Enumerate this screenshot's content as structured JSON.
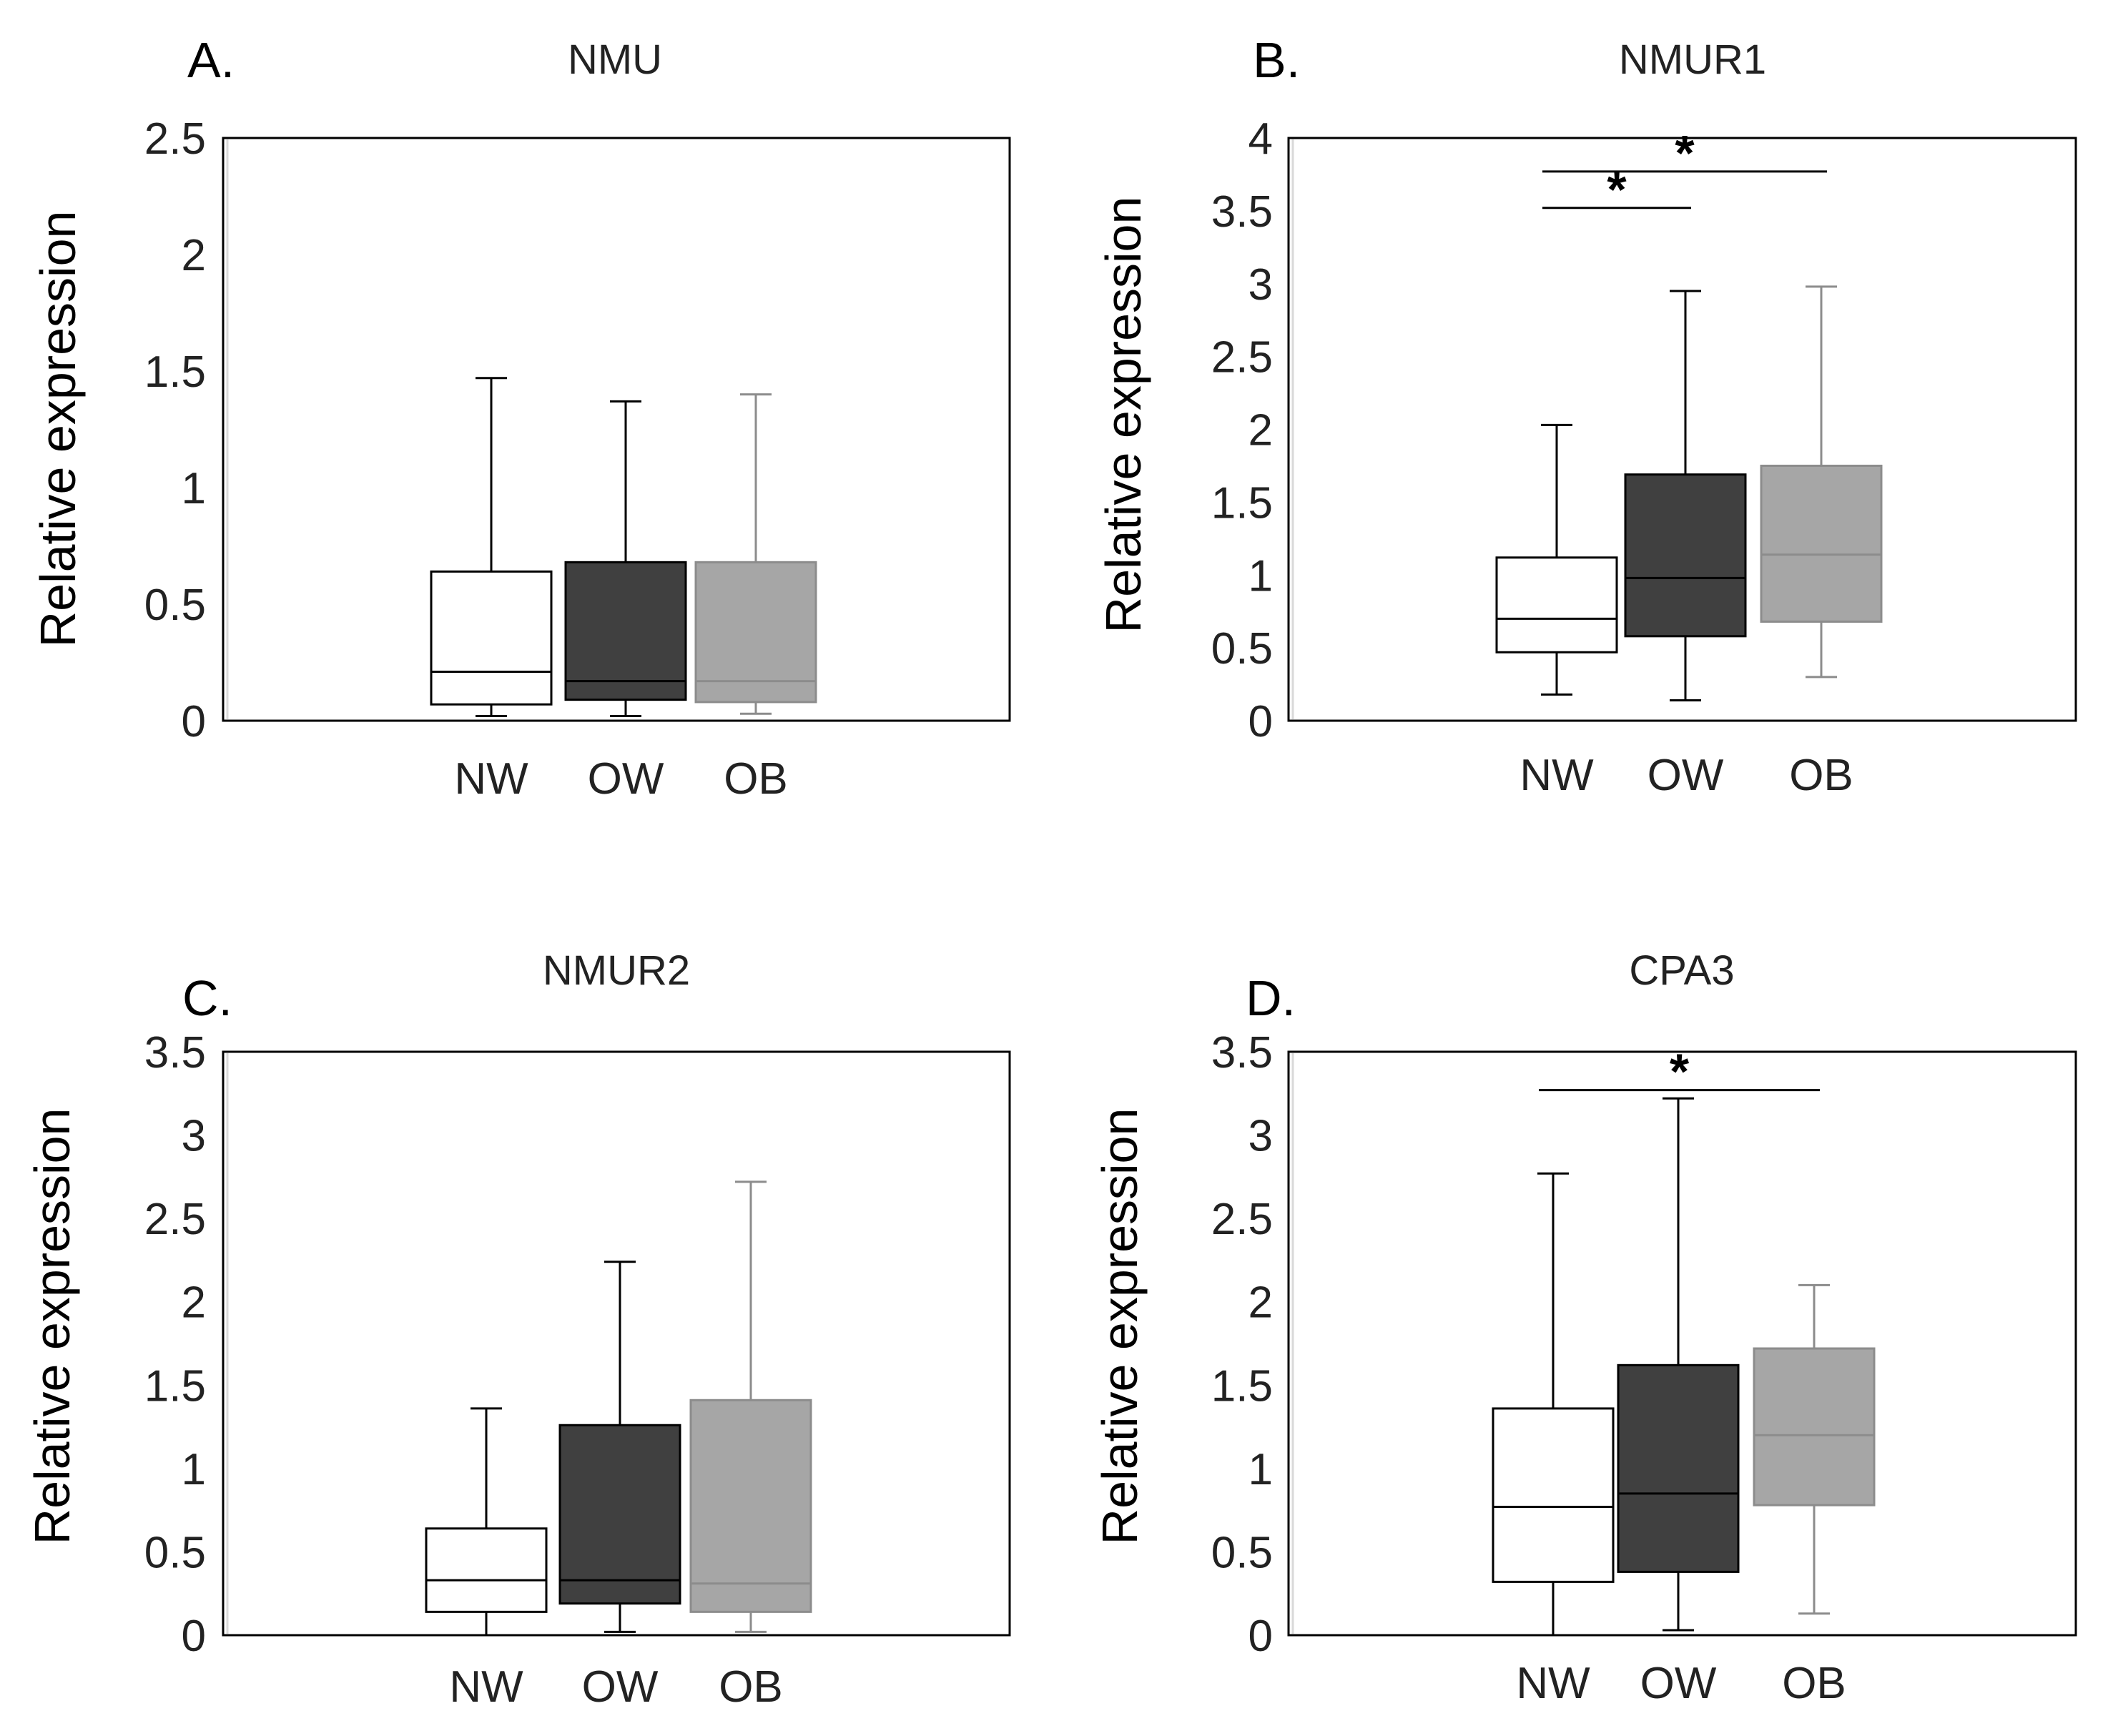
{
  "chart_data": [
    {
      "type": "box",
      "panel_label": "A.",
      "title": "NMU",
      "ylabel": "Relative expression",
      "ylim": [
        0,
        2.5
      ],
      "yticks": [
        "0",
        "0.5",
        "1",
        "1.5",
        "2",
        "2.5"
      ],
      "categories": [
        "NW",
        "OW",
        "OB"
      ],
      "boxes": [
        {
          "category": "NW",
          "min": 0.02,
          "q1": 0.07,
          "median": 0.21,
          "q3": 0.64,
          "max": 1.47,
          "color": "#ffffff",
          "line": "#000000"
        },
        {
          "category": "OW",
          "min": 0.02,
          "q1": 0.09,
          "median": 0.17,
          "q3": 0.68,
          "max": 1.37,
          "color": "#404040",
          "line": "#000000"
        },
        {
          "category": "OB",
          "min": 0.03,
          "q1": 0.08,
          "median": 0.17,
          "q3": 0.68,
          "max": 1.4,
          "color": "#a6a6a6",
          "line": "#8c8c8c"
        }
      ],
      "significance": []
    },
    {
      "type": "box",
      "panel_label": "B.",
      "title": "NMUR1",
      "ylabel": "Relative expression",
      "ylim": [
        0,
        4
      ],
      "yticks": [
        "0",
        "0.5",
        "1",
        "1.5",
        "2",
        "2.5",
        "3",
        "3.5",
        "4"
      ],
      "categories": [
        "NW",
        "OW",
        "OB"
      ],
      "boxes": [
        {
          "category": "NW",
          "min": 0.18,
          "q1": 0.47,
          "median": 0.7,
          "q3": 1.12,
          "max": 2.03,
          "color": "#ffffff",
          "line": "#000000"
        },
        {
          "category": "OW",
          "min": 0.14,
          "q1": 0.58,
          "median": 0.98,
          "q3": 1.69,
          "max": 2.95,
          "color": "#404040",
          "line": "#000000"
        },
        {
          "category": "OB",
          "min": 0.3,
          "q1": 0.68,
          "median": 1.14,
          "q3": 1.75,
          "max": 2.98,
          "color": "#a6a6a6",
          "line": "#8c8c8c"
        }
      ],
      "significance": [
        {
          "from": "NW",
          "to": "OW",
          "y": 3.52,
          "label": "*"
        },
        {
          "from": "NW",
          "to": "OB",
          "y": 3.77,
          "label": "*"
        }
      ]
    },
    {
      "type": "box",
      "panel_label": "C.",
      "title": "NMUR2",
      "ylabel": "Relative expression",
      "ylim": [
        0,
        3.5
      ],
      "yticks": [
        "0",
        "0.5",
        "1",
        "1.5",
        "2",
        "2.5",
        "3",
        "3.5"
      ],
      "categories": [
        "NW",
        "OW",
        "OB"
      ],
      "boxes": [
        {
          "category": "NW",
          "min": 0.0,
          "q1": 0.14,
          "median": 0.33,
          "q3": 0.64,
          "max": 1.36,
          "color": "#ffffff",
          "line": "#000000"
        },
        {
          "category": "OW",
          "min": 0.02,
          "q1": 0.19,
          "median": 0.33,
          "q3": 1.26,
          "max": 2.24,
          "color": "#404040",
          "line": "#000000"
        },
        {
          "category": "OB",
          "min": 0.02,
          "q1": 0.14,
          "median": 0.31,
          "q3": 1.41,
          "max": 2.72,
          "color": "#a6a6a6",
          "line": "#8c8c8c"
        }
      ],
      "significance": []
    },
    {
      "type": "box",
      "panel_label": "D.",
      "title": "CPA3",
      "ylabel": "Relative expression",
      "ylim": [
        0,
        3.5
      ],
      "yticks": [
        "0",
        "0.5",
        "1",
        "1.5",
        "2",
        "2.5",
        "3",
        "3.5"
      ],
      "categories": [
        "NW",
        "OW",
        "OB"
      ],
      "boxes": [
        {
          "category": "NW",
          "min": 0.0,
          "q1": 0.32,
          "median": 0.77,
          "q3": 1.36,
          "max": 2.77,
          "color": "#ffffff",
          "line": "#000000"
        },
        {
          "category": "OW",
          "min": 0.03,
          "q1": 0.38,
          "median": 0.85,
          "q3": 1.62,
          "max": 3.22,
          "color": "#404040",
          "line": "#000000"
        },
        {
          "category": "OB",
          "min": 0.13,
          "q1": 0.78,
          "median": 1.2,
          "q3": 1.72,
          "max": 2.1,
          "color": "#a6a6a6",
          "line": "#8c8c8c"
        }
      ],
      "significance": [
        {
          "from": "NW",
          "to": "OB",
          "y": 3.27,
          "label": "*"
        }
      ]
    }
  ]
}
